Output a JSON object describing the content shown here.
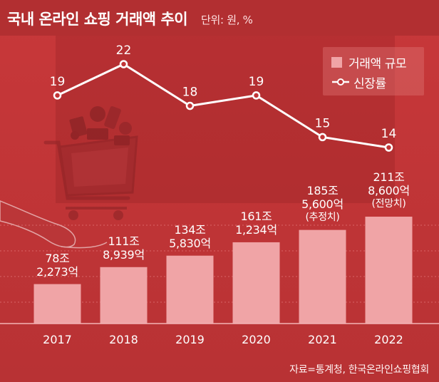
{
  "title": "국내 온라인 쇼핑 거래액 추이",
  "unit": "단위: 원, %",
  "legend": {
    "bar_label": "거래액 규모",
    "line_label": "신장률"
  },
  "source": "자료=통계청, 한국온라인쇼핑협회",
  "colors": {
    "background": "#c13537",
    "bar": "#f0a4a6",
    "line": "#ffffff",
    "text": "#ffffff"
  },
  "chart_data": {
    "type": "bar",
    "title": "국내 온라인 쇼핑 거래액 추이",
    "categories": [
      "2017",
      "2018",
      "2019",
      "2020",
      "2021",
      "2022"
    ],
    "series": [
      {
        "name": "거래액 규모",
        "type": "bar",
        "unit": "억원",
        "values": [
          782273,
          1118939,
          1345830,
          1611234,
          1855600,
          2118600
        ]
      },
      {
        "name": "신장률",
        "type": "line",
        "unit": "%",
        "values": [
          19,
          22,
          18,
          19,
          15,
          14
        ]
      }
    ],
    "bar_labels": [
      {
        "line1": "78조",
        "line2": "2,273억",
        "note": ""
      },
      {
        "line1": "111조",
        "line2": "8,939억",
        "note": ""
      },
      {
        "line1": "134조",
        "line2": "5,830억",
        "note": ""
      },
      {
        "line1": "161조",
        "line2": "1,234억",
        "note": ""
      },
      {
        "line1": "185조",
        "line2": "5,600억",
        "note": "(추정치)"
      },
      {
        "line1": "211조",
        "line2": "8,600억",
        "note": "(전망치)"
      }
    ],
    "line_labels": [
      "19",
      "22",
      "18",
      "19",
      "15",
      "14"
    ],
    "grid": true,
    "legend_position": "top-right",
    "xlabel": "",
    "ylabel": ""
  }
}
